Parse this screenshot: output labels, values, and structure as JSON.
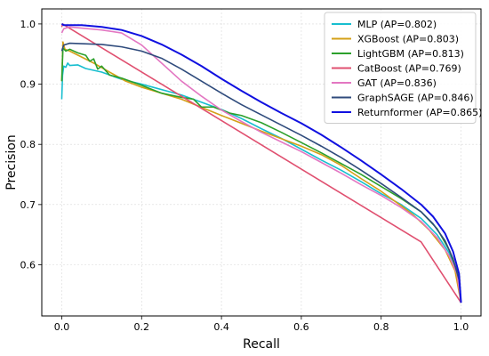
{
  "chart_data": {
    "type": "line",
    "title": "",
    "xlabel": "Recall",
    "ylabel": "Precision",
    "xlim": [
      -0.05,
      1.05
    ],
    "ylim": [
      0.515,
      1.025
    ],
    "xticks": [
      "0.0",
      "0.2",
      "0.4",
      "0.6",
      "0.8",
      "1.0"
    ],
    "yticks": [
      "0.6",
      "0.7",
      "0.8",
      "0.9",
      "1.0"
    ],
    "grid": true,
    "legend_position": "top-right",
    "series": [
      {
        "name": "MLP (AP=0.802)",
        "color": "#17becf",
        "points": [
          [
            0.0,
            0.875
          ],
          [
            0.002,
            0.915
          ],
          [
            0.005,
            0.93
          ],
          [
            0.01,
            0.928
          ],
          [
            0.015,
            0.935
          ],
          [
            0.02,
            0.931
          ],
          [
            0.04,
            0.932
          ],
          [
            0.06,
            0.926
          ],
          [
            0.1,
            0.92
          ],
          [
            0.15,
            0.908
          ],
          [
            0.2,
            0.9
          ],
          [
            0.3,
            0.882
          ],
          [
            0.35,
            0.87
          ],
          [
            0.4,
            0.858
          ],
          [
            0.45,
            0.843
          ],
          [
            0.5,
            0.826
          ],
          [
            0.55,
            0.81
          ],
          [
            0.6,
            0.792
          ],
          [
            0.65,
            0.774
          ],
          [
            0.7,
            0.757
          ],
          [
            0.75,
            0.738
          ],
          [
            0.8,
            0.718
          ],
          [
            0.85,
            0.7
          ],
          [
            0.9,
            0.677
          ],
          [
            0.94,
            0.65
          ],
          [
            0.97,
            0.62
          ],
          [
            0.99,
            0.585
          ],
          [
            1.0,
            0.537
          ]
        ]
      },
      {
        "name": "XGBoost (AP=0.803)",
        "color": "#d4a017",
        "points": [
          [
            0.0,
            0.905
          ],
          [
            0.003,
            0.97
          ],
          [
            0.008,
            0.958
          ],
          [
            0.02,
            0.955
          ],
          [
            0.05,
            0.945
          ],
          [
            0.08,
            0.935
          ],
          [
            0.12,
            0.92
          ],
          [
            0.16,
            0.905
          ],
          [
            0.2,
            0.895
          ],
          [
            0.3,
            0.875
          ],
          [
            0.4,
            0.848
          ],
          [
            0.5,
            0.822
          ],
          [
            0.6,
            0.797
          ],
          [
            0.65,
            0.783
          ],
          [
            0.7,
            0.765
          ],
          [
            0.75,
            0.743
          ],
          [
            0.8,
            0.722
          ],
          [
            0.85,
            0.698
          ],
          [
            0.88,
            0.683
          ],
          [
            0.92,
            0.658
          ],
          [
            0.96,
            0.625
          ],
          [
            0.985,
            0.59
          ],
          [
            1.0,
            0.537
          ]
        ]
      },
      {
        "name": "LightGBM (AP=0.813)",
        "color": "#2ca02c",
        "points": [
          [
            0.0,
            0.905
          ],
          [
            0.003,
            0.96
          ],
          [
            0.01,
            0.955
          ],
          [
            0.02,
            0.958
          ],
          [
            0.04,
            0.952
          ],
          [
            0.06,
            0.948
          ],
          [
            0.07,
            0.938
          ],
          [
            0.08,
            0.942
          ],
          [
            0.09,
            0.925
          ],
          [
            0.1,
            0.93
          ],
          [
            0.12,
            0.915
          ],
          [
            0.15,
            0.91
          ],
          [
            0.2,
            0.898
          ],
          [
            0.25,
            0.885
          ],
          [
            0.3,
            0.878
          ],
          [
            0.33,
            0.875
          ],
          [
            0.35,
            0.862
          ],
          [
            0.38,
            0.862
          ],
          [
            0.42,
            0.852
          ],
          [
            0.45,
            0.848
          ],
          [
            0.5,
            0.836
          ],
          [
            0.55,
            0.82
          ],
          [
            0.6,
            0.803
          ],
          [
            0.65,
            0.786
          ],
          [
            0.7,
            0.768
          ],
          [
            0.75,
            0.75
          ],
          [
            0.8,
            0.73
          ],
          [
            0.85,
            0.71
          ],
          [
            0.9,
            0.688
          ],
          [
            0.94,
            0.66
          ],
          [
            0.97,
            0.625
          ],
          [
            0.99,
            0.59
          ],
          [
            1.0,
            0.537
          ]
        ]
      },
      {
        "name": "CatBoost (AP=0.769)",
        "color": "#e05070",
        "points": [
          [
            0.0,
            0.995
          ],
          [
            0.002,
            1.0
          ],
          [
            0.9,
            0.638
          ],
          [
            1.0,
            0.537
          ]
        ]
      },
      {
        "name": "GAT (AP=0.836)",
        "color": "#e377c2",
        "points": [
          [
            0.0,
            0.985
          ],
          [
            0.005,
            0.992
          ],
          [
            0.02,
            0.995
          ],
          [
            0.1,
            0.99
          ],
          [
            0.15,
            0.985
          ],
          [
            0.2,
            0.965
          ],
          [
            0.25,
            0.935
          ],
          [
            0.3,
            0.905
          ],
          [
            0.35,
            0.88
          ],
          [
            0.4,
            0.857
          ],
          [
            0.45,
            0.838
          ],
          [
            0.5,
            0.82
          ],
          [
            0.55,
            0.804
          ],
          [
            0.6,
            0.788
          ],
          [
            0.65,
            0.77
          ],
          [
            0.7,
            0.752
          ],
          [
            0.75,
            0.733
          ],
          [
            0.8,
            0.715
          ],
          [
            0.85,
            0.695
          ],
          [
            0.9,
            0.672
          ],
          [
            0.94,
            0.645
          ],
          [
            0.97,
            0.615
          ],
          [
            0.99,
            0.585
          ],
          [
            1.0,
            0.537
          ]
        ]
      },
      {
        "name": "GraphSAGE (AP=0.846)",
        "color": "#2f4b7c",
        "points": [
          [
            0.0,
            0.955
          ],
          [
            0.005,
            0.965
          ],
          [
            0.02,
            0.968
          ],
          [
            0.1,
            0.966
          ],
          [
            0.15,
            0.962
          ],
          [
            0.2,
            0.955
          ],
          [
            0.25,
            0.943
          ],
          [
            0.3,
            0.925
          ],
          [
            0.35,
            0.905
          ],
          [
            0.4,
            0.885
          ],
          [
            0.45,
            0.866
          ],
          [
            0.5,
            0.849
          ],
          [
            0.55,
            0.832
          ],
          [
            0.6,
            0.815
          ],
          [
            0.65,
            0.797
          ],
          [
            0.7,
            0.778
          ],
          [
            0.75,
            0.757
          ],
          [
            0.8,
            0.735
          ],
          [
            0.85,
            0.712
          ],
          [
            0.9,
            0.688
          ],
          [
            0.93,
            0.668
          ],
          [
            0.96,
            0.64
          ],
          [
            0.98,
            0.61
          ],
          [
            0.995,
            0.575
          ],
          [
            1.0,
            0.537
          ]
        ]
      },
      {
        "name": "Returnformer (AP=0.865)",
        "color": "#1010e0",
        "points": [
          [
            0.0,
            1.0
          ],
          [
            0.005,
            0.998
          ],
          [
            0.05,
            0.998
          ],
          [
            0.1,
            0.995
          ],
          [
            0.15,
            0.99
          ],
          [
            0.2,
            0.98
          ],
          [
            0.25,
            0.966
          ],
          [
            0.3,
            0.949
          ],
          [
            0.35,
            0.93
          ],
          [
            0.4,
            0.909
          ],
          [
            0.45,
            0.889
          ],
          [
            0.5,
            0.87
          ],
          [
            0.55,
            0.852
          ],
          [
            0.6,
            0.835
          ],
          [
            0.65,
            0.816
          ],
          [
            0.7,
            0.795
          ],
          [
            0.75,
            0.773
          ],
          [
            0.8,
            0.75
          ],
          [
            0.85,
            0.726
          ],
          [
            0.9,
            0.7
          ],
          [
            0.93,
            0.68
          ],
          [
            0.96,
            0.652
          ],
          [
            0.98,
            0.622
          ],
          [
            0.995,
            0.585
          ],
          [
            1.0,
            0.537
          ]
        ]
      }
    ]
  }
}
